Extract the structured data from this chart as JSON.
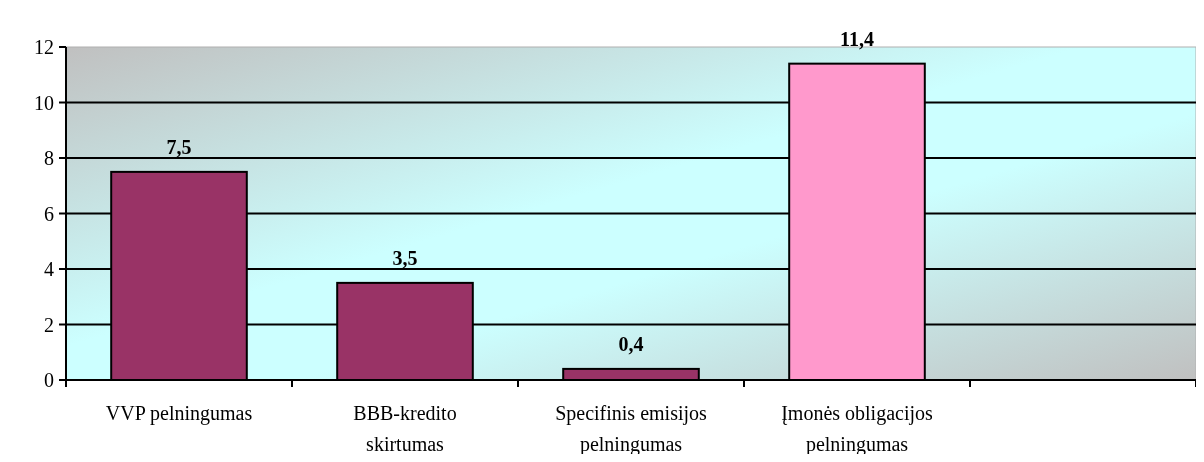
{
  "chart_data": {
    "type": "bar",
    "categories": [
      "VVP pelningumas",
      "BBB-kredito skirtumas",
      "Specifinis emisijos pelningumas",
      "Įmonės obligacijos pelningumas",
      null
    ],
    "values": [
      7.5,
      3.5,
      0.4,
      11.4,
      null
    ],
    "colors": [
      "#993366",
      "#993366",
      "#993366",
      "#ff99cc",
      null
    ],
    "value_labels": [
      "7,5",
      "3,5",
      "0,4",
      "11,4",
      null
    ],
    "ylim": [
      0,
      12
    ],
    "yticks": [
      0,
      2,
      4,
      6,
      8,
      10,
      12
    ],
    "grid": "y"
  }
}
